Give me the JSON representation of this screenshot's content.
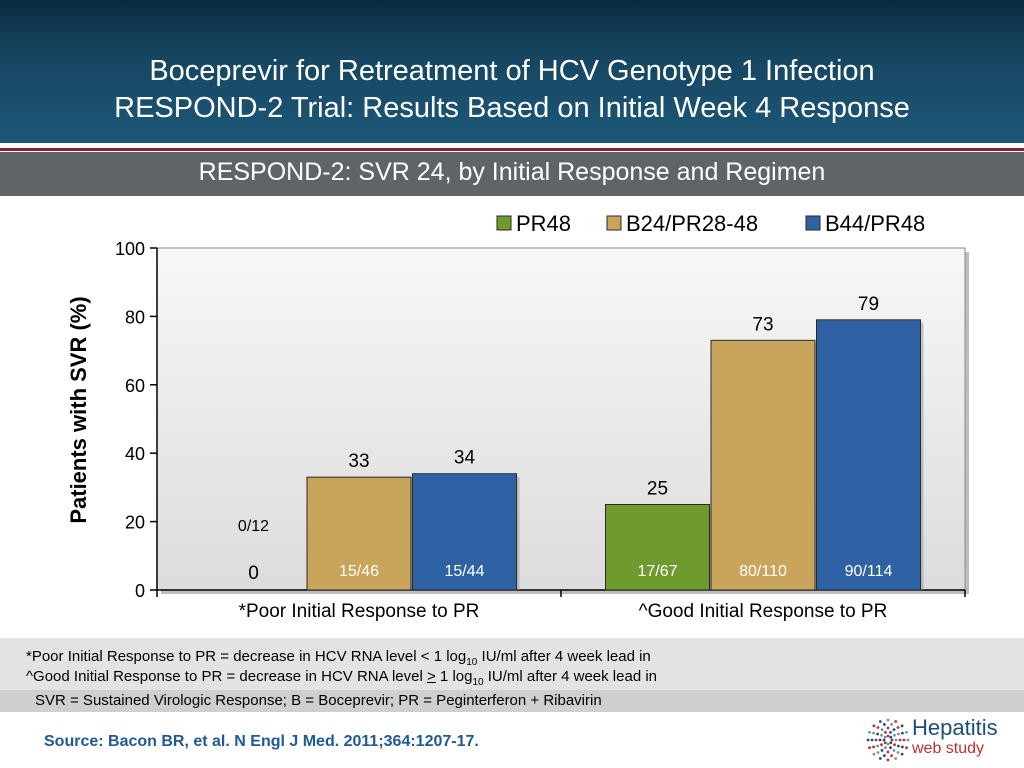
{
  "header": {
    "title_line1": "Boceprevir for Retreatment of HCV Genotype 1 Infection",
    "title_line2": "RESPOND-2 Trial: Results Based on Initial Week 4 Response"
  },
  "band": {
    "subtitle": "RESPOND-2: SVR 24, by Initial Response and Regimen"
  },
  "chart_data": {
    "type": "bar",
    "ylabel": "Patients with SVR (%)",
    "xlabel": "",
    "ylim": [
      0,
      100
    ],
    "yticks": [
      "0",
      "20",
      "40",
      "60",
      "80",
      "100"
    ],
    "categories": [
      "*Poor Initial Response to PR",
      "^Good Initial Response to PR"
    ],
    "series": [
      {
        "name": "PR48",
        "color": "#6f9a2e",
        "values": [
          0,
          25
        ],
        "labels": [
          "0",
          "25"
        ],
        "counts": [
          "0/12",
          "17/67"
        ]
      },
      {
        "name": "B24/PR28-48",
        "color": "#c9a45b",
        "values": [
          33,
          73
        ],
        "labels": [
          "33",
          "73"
        ],
        "counts": [
          "15/46",
          "80/110"
        ]
      },
      {
        "name": "B44/PR48",
        "color": "#2f62a4",
        "values": [
          34,
          79
        ],
        "labels": [
          "34",
          "79"
        ],
        "counts": [
          "15/44",
          "90/114"
        ]
      }
    ],
    "legend": "top-right",
    "grid": false,
    "plot_background": "#eaeaea"
  },
  "notes": {
    "poor_a": "*Poor Initial Response to PR = decrease in HCV RNA level < 1 log",
    "poor_sub": "10",
    "poor_b": " IU/ml after 4 week lead in",
    "good_a": "^Good Initial Response to PR = decrease in HCV RNA level ",
    "good_ge": ">",
    "good_c": " 1 log",
    "good_sub": "10",
    "good_b": " IU/ml after 4 week lead in",
    "abbreviations": "SVR = Sustained Virologic Response; B = Boceprevir;  PR = Peginterferon + Ribavirin"
  },
  "footer": {
    "source": "Source: Bacon BR, et al.  N Engl J Med.  2011;364:1207-17.",
    "logo_word1": "Hepatitis",
    "logo_word2": "web study"
  }
}
